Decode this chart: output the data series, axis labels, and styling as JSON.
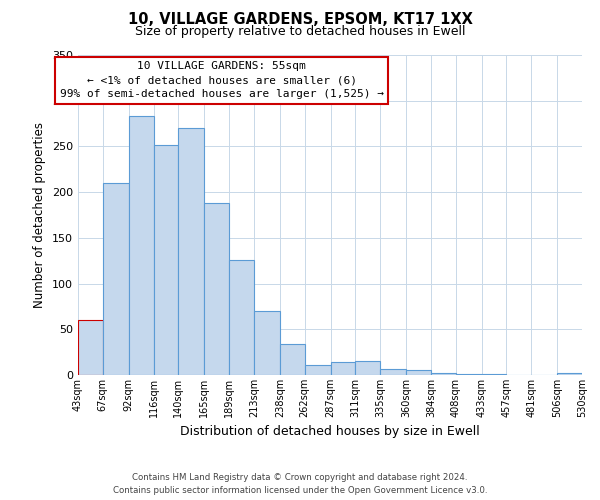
{
  "title": "10, VILLAGE GARDENS, EPSOM, KT17 1XX",
  "subtitle": "Size of property relative to detached houses in Ewell",
  "xlabel": "Distribution of detached houses by size in Ewell",
  "ylabel": "Number of detached properties",
  "bins": [
    43,
    67,
    92,
    116,
    140,
    165,
    189,
    213,
    238,
    262,
    287,
    311,
    335,
    360,
    384,
    408,
    433,
    457,
    481,
    506,
    530
  ],
  "counts": [
    60,
    210,
    283,
    252,
    270,
    188,
    126,
    70,
    34,
    11,
    14,
    15,
    7,
    5,
    2,
    1,
    1,
    0,
    0,
    2
  ],
  "bar_color": "#c5d8ed",
  "bar_edge_color": "#5b9bd5",
  "highlight_bin_index": 0,
  "highlight_edge_color": "#cc0000",
  "ylim": [
    0,
    350
  ],
  "yticks": [
    0,
    50,
    100,
    150,
    200,
    250,
    300,
    350
  ],
  "tick_labels": [
    "43sqm",
    "67sqm",
    "92sqm",
    "116sqm",
    "140sqm",
    "165sqm",
    "189sqm",
    "213sqm",
    "238sqm",
    "262sqm",
    "287sqm",
    "311sqm",
    "335sqm",
    "360sqm",
    "384sqm",
    "408sqm",
    "433sqm",
    "457sqm",
    "481sqm",
    "506sqm",
    "530sqm"
  ],
  "annotation_line1": "10 VILLAGE GARDENS: 55sqm",
  "annotation_line2": "← <1% of detached houses are smaller (6)",
  "annotation_line3": "99% of semi-detached houses are larger (1,525) →",
  "annotation_box_color": "#ffffff",
  "annotation_box_edge": "#cc0000",
  "footer1": "Contains HM Land Registry data © Crown copyright and database right 2024.",
  "footer2": "Contains public sector information licensed under the Open Government Licence v3.0.",
  "background_color": "#ffffff",
  "grid_color": "#c8d8e8"
}
